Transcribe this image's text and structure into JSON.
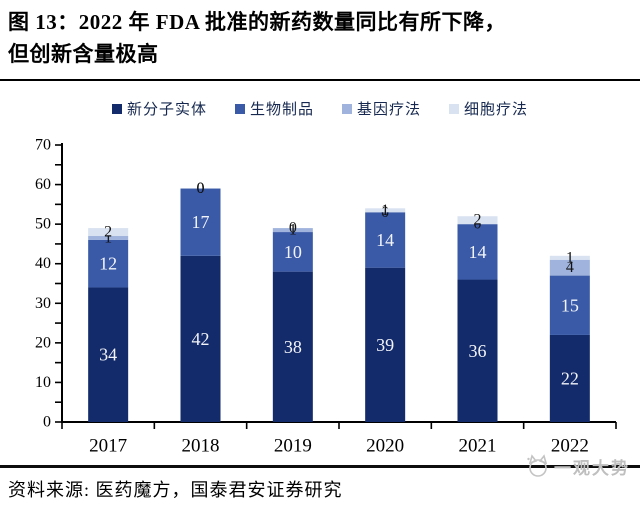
{
  "header": {
    "figure_label_line1": "图 13：2022 年 FDA 批准的新药数量同比有所下降，",
    "figure_label_line2": "但创新含量极高"
  },
  "chart_data": {
    "type": "bar",
    "stacked": true,
    "title": "2022 年 FDA 批准的新药数量同比有所下降，但创新含量极高",
    "categories": [
      "2017",
      "2018",
      "2019",
      "2020",
      "2021",
      "2022"
    ],
    "series": [
      {
        "name": "新分子实体",
        "color": "#132A6B",
        "label_color": "#f2f4f9",
        "values": [
          34,
          42,
          38,
          39,
          36,
          22
        ]
      },
      {
        "name": "生物制品",
        "color": "#3A5AA8",
        "label_color": "#f2f4f9",
        "values": [
          12,
          17,
          10,
          14,
          14,
          15
        ]
      },
      {
        "name": "基因疗法",
        "color": "#9FB3DC",
        "label_color": "#131313",
        "values": [
          1,
          0,
          1,
          0,
          0,
          4
        ]
      },
      {
        "name": "细胞疗法",
        "color": "#D9E2F1",
        "label_color": "#131313",
        "values": [
          2,
          0,
          0,
          1,
          2,
          1
        ]
      }
    ],
    "totals": [
      49,
      59,
      49,
      54,
      52,
      42
    ],
    "ylim": [
      0,
      70
    ],
    "ytick_major": 10,
    "ytick_minor": 5,
    "grid": false,
    "legend_position": "top",
    "axis_color": "#000000",
    "tick_label_color": "#000000"
  },
  "footer": {
    "source": "资料来源: 医药魔方，国泰君安证券研究",
    "logo_text": "一观大势"
  }
}
